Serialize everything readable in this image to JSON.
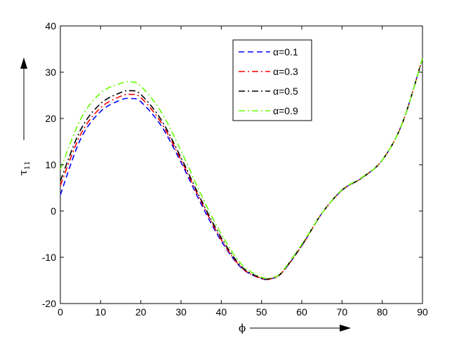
{
  "chart_data": {
    "type": "line",
    "title": "",
    "xlabel": "ϕ",
    "ylabel_main": "τ",
    "ylabel_sub": "11",
    "xlim": [
      0,
      90
    ],
    "ylim": [
      -20,
      40
    ],
    "xticks": [
      0,
      10,
      20,
      30,
      40,
      50,
      60,
      70,
      80,
      90
    ],
    "yticks": [
      -20,
      -10,
      0,
      10,
      20,
      30,
      40
    ],
    "grid": false,
    "legend_position": "top-right",
    "x": [
      0,
      5,
      10,
      15,
      17.5,
      20,
      25,
      30,
      35,
      40,
      45,
      50,
      52.5,
      55,
      60,
      65,
      70,
      75,
      80,
      85,
      90
    ],
    "series": [
      {
        "name": "α=0.1",
        "color": "#0000ff",
        "dash": "dashed",
        "values": [
          3.5,
          15.5,
          21.5,
          24.0,
          24.3,
          23.6,
          18.5,
          10.5,
          1.5,
          -6.5,
          -12.3,
          -14.6,
          -14.6,
          -13.4,
          -7.5,
          -0.5,
          4.5,
          7.2,
          11.0,
          19.0,
          33.0
        ]
      },
      {
        "name": "α=0.3",
        "color": "#ff0000",
        "dash": "dashdot",
        "values": [
          5.5,
          16.5,
          22.3,
          24.8,
          25.2,
          24.5,
          19.2,
          11.0,
          2.0,
          -6.2,
          -12.2,
          -14.6,
          -14.6,
          -13.4,
          -7.5,
          -0.5,
          4.5,
          7.2,
          11.0,
          19.0,
          33.0
        ]
      },
      {
        "name": "α=0.5",
        "color": "#000000",
        "dash": "dashdot",
        "values": [
          6.5,
          17.5,
          23.2,
          25.6,
          26.0,
          25.2,
          19.8,
          11.5,
          2.4,
          -5.8,
          -12.0,
          -14.5,
          -14.5,
          -13.3,
          -7.4,
          -0.5,
          4.5,
          7.2,
          11.0,
          19.0,
          33.0
        ]
      },
      {
        "name": "α=0.9",
        "color": "#66ff00",
        "dash": "dashdot",
        "values": [
          9.0,
          19.8,
          25.5,
          27.6,
          27.9,
          27.0,
          21.5,
          13.0,
          3.5,
          -5.0,
          -11.5,
          -14.3,
          -14.4,
          -13.2,
          -7.2,
          -0.5,
          4.6,
          7.3,
          11.0,
          19.0,
          33.0
        ]
      }
    ]
  }
}
